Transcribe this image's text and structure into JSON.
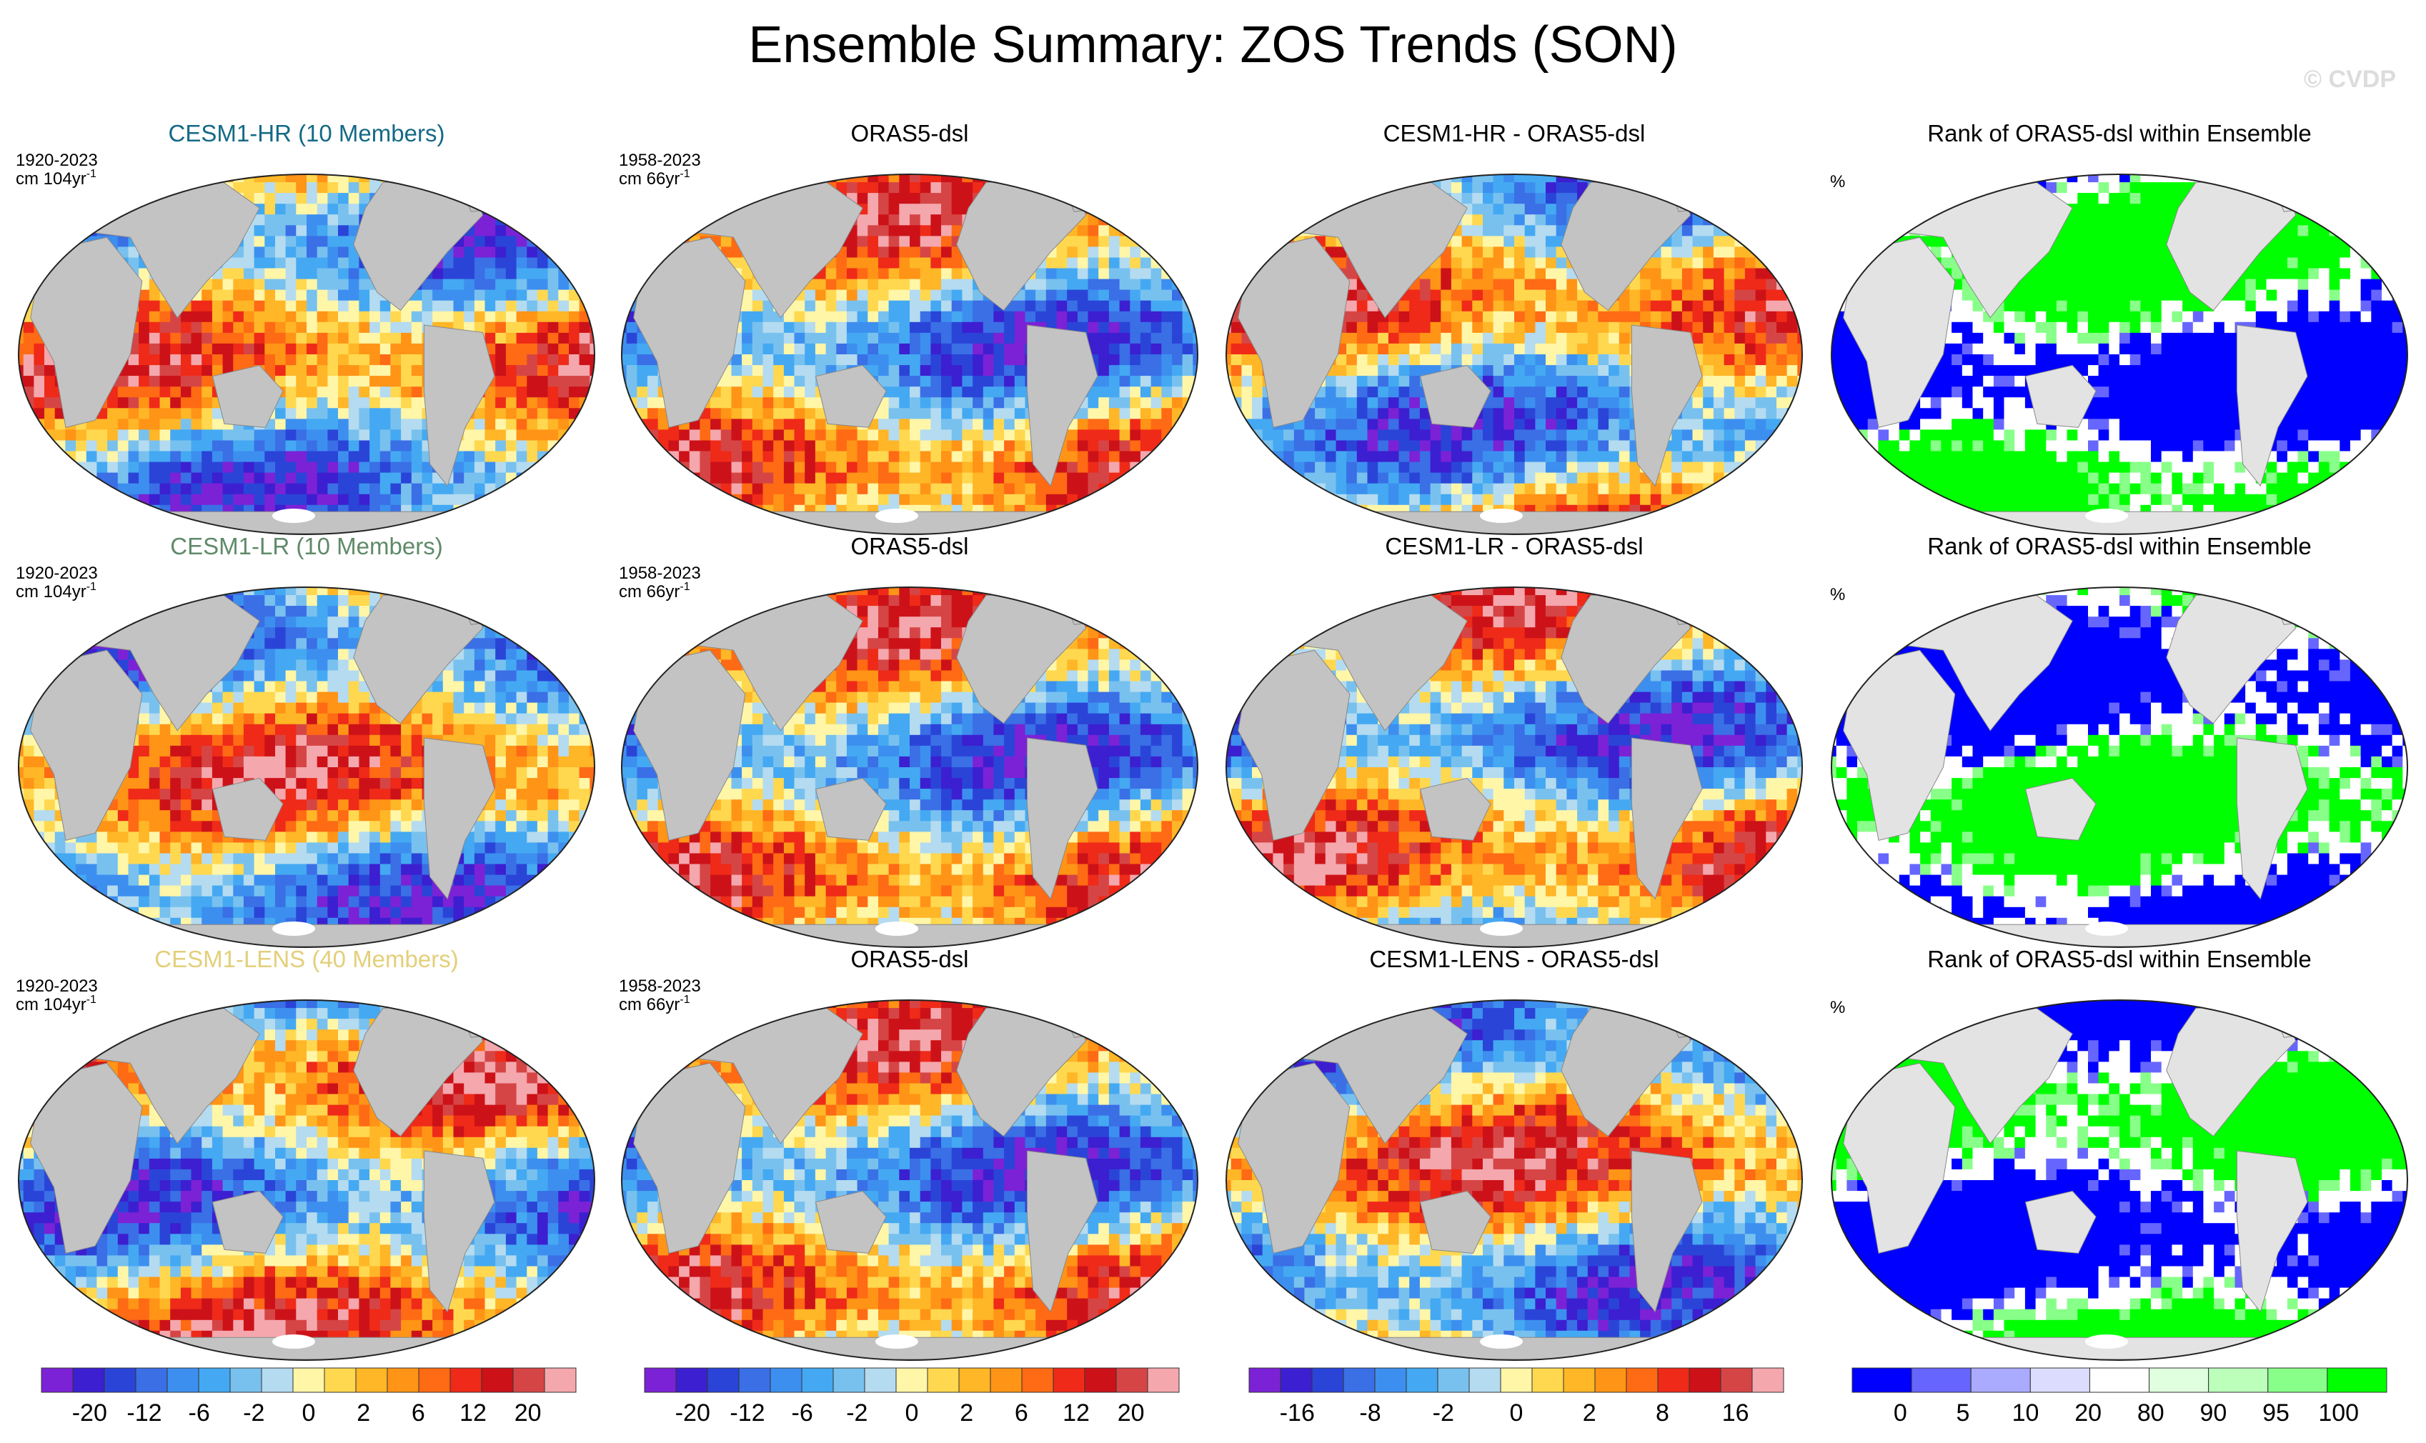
{
  "title": "Ensemble Summary: ZOS Trends (SON)",
  "watermark": "© CVDP",
  "colors": {
    "land": "#c3c3c3",
    "rank_land": "#e3e3e3",
    "trend_palette": [
      "#7b22d6",
      "#3c1fd0",
      "#2a44d8",
      "#3a6fe6",
      "#3d8fef",
      "#44a9f2",
      "#78c1ef",
      "#b4dbf0",
      "#fff6a8",
      "#ffd84f",
      "#ffb627",
      "#ff9416",
      "#ff6a14",
      "#ef2a18",
      "#cc1218",
      "#d64545",
      "#f4a7ad"
    ],
    "rank_palette": [
      "#0000ff",
      "#6666ff",
      "#aaaaff",
      "#dcdcff",
      "#ffffff",
      "#dfffdf",
      "#bbffbb",
      "#88ff88",
      "#00ff00"
    ]
  },
  "panels": [
    {
      "title": "CESM1-HR (10 Members)",
      "title_color": "#146a86",
      "period": "1920-2023",
      "units": "cm 104yr",
      "kind": "trend",
      "seed": 11
    },
    {
      "title": "ORAS5-dsl",
      "title_color": "#000000",
      "period": "1958-2023",
      "units": "cm 66yr",
      "kind": "trend",
      "seed": 23
    },
    {
      "title": "CESM1-HR - ORAS5-dsl",
      "title_color": "#000000",
      "kind": "diff",
      "seed": 37
    },
    {
      "title": "Rank of ORAS5-dsl within Ensemble",
      "title_color": "#000000",
      "units_pct": "%",
      "kind": "rank",
      "seed": 41
    },
    {
      "title": "CESM1-LR (10 Members)",
      "title_color": "#5f8a69",
      "period": "1920-2023",
      "units": "cm 104yr",
      "kind": "trend",
      "seed": 53
    },
    {
      "title": "ORAS5-dsl",
      "title_color": "#000000",
      "period": "1958-2023",
      "units": "cm 66yr",
      "kind": "trend",
      "seed": 23
    },
    {
      "title": "CESM1-LR - ORAS5-dsl",
      "title_color": "#000000",
      "kind": "diff",
      "seed": 67
    },
    {
      "title": "Rank of ORAS5-dsl within Ensemble",
      "title_color": "#000000",
      "units_pct": "%",
      "kind": "rank",
      "seed": 71
    },
    {
      "title": "CESM1-LENS (40 Members)",
      "title_color": "#e3cf7a",
      "period": "1920-2023",
      "units": "cm 104yr",
      "kind": "trend",
      "seed": 83
    },
    {
      "title": "ORAS5-dsl",
      "title_color": "#000000",
      "period": "1958-2023",
      "units": "cm 66yr",
      "kind": "trend",
      "seed": 23
    },
    {
      "title": "CESM1-LENS - ORAS5-dsl",
      "title_color": "#000000",
      "kind": "diff",
      "seed": 97
    },
    {
      "title": "Rank of ORAS5-dsl within Ensemble",
      "title_color": "#000000",
      "units_pct": "%",
      "kind": "rank",
      "seed": 101
    }
  ],
  "units_superscript": "-1",
  "colorbars": [
    {
      "kind": "trend",
      "tick_labels": [
        "-20",
        "-12",
        "-6",
        "-2",
        "0",
        "2",
        "6",
        "12",
        "20"
      ]
    },
    {
      "kind": "trend",
      "tick_labels": [
        "-20",
        "-12",
        "-6",
        "-2",
        "0",
        "2",
        "6",
        "12",
        "20"
      ]
    },
    {
      "kind": "diff",
      "tick_labels": [
        "-16",
        "-8",
        "-2",
        "0",
        "2",
        "8",
        "16"
      ]
    },
    {
      "kind": "rank",
      "tick_labels": [
        "0",
        "5",
        "10",
        "20",
        "80",
        "90",
        "95",
        "100"
      ]
    }
  ],
  "chart_data": {
    "type": "heatmap",
    "description_grid": "4 columns x 3 rows of global Robinson-projection maps",
    "variable": "ZOS trends",
    "season": "SON",
    "trend_levels_cm": [
      -20,
      -16,
      -12,
      -8,
      -6,
      -4,
      -2,
      -1,
      0,
      1,
      2,
      4,
      6,
      8,
      12,
      16,
      20
    ],
    "diff_levels_cm": [
      -16,
      -8,
      -2,
      0,
      2,
      8,
      16
    ],
    "rank_levels_pct": [
      0,
      5,
      10,
      20,
      80,
      90,
      95,
      100
    ]
  }
}
